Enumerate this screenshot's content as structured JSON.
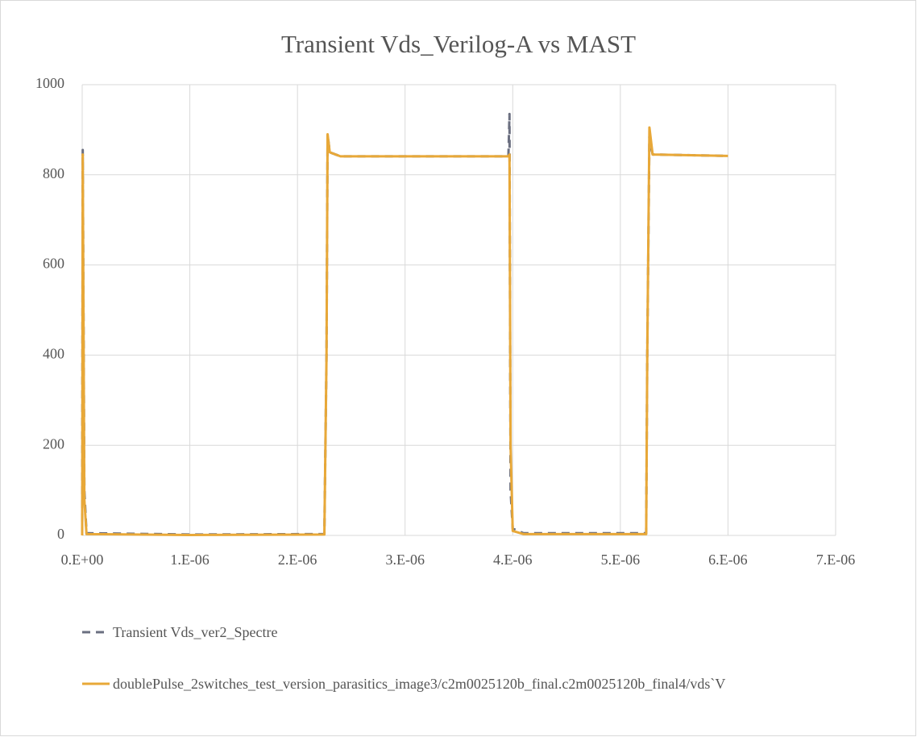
{
  "chart_data": {
    "type": "line",
    "title": "Transient Vds_Verilog-A vs MAST",
    "x": [
      0,
      5e-09,
      2e-08,
      4e-08,
      1e-06,
      2.25e-06,
      2.27e-06,
      2.28e-06,
      2.3e-06,
      2.4e-06,
      3.96e-06,
      3.97e-06,
      3.98e-06,
      4e-06,
      4.1e-06,
      5.24e-06,
      5.25e-06,
      5.27e-06,
      5.3e-06,
      6e-06
    ],
    "series": [
      {
        "name": "Transient Vds_ver2_Spectre",
        "color": "#6b6f80",
        "dashed": true,
        "values": [
          0,
          855,
          100,
          5,
          2,
          3,
          400,
          890,
          850,
          841,
          841,
          935,
          100,
          15,
          5,
          5,
          400,
          885,
          845,
          842
        ]
      },
      {
        "name": "doublePulse_2switches_test_version_parasitics_image3/c2m0025120b_final.c2m0025120b_final4/vds`V",
        "color": "#e8a838",
        "dashed": false,
        "values": [
          0,
          845,
          80,
          3,
          1,
          2,
          400,
          890,
          850,
          841,
          841,
          845,
          200,
          10,
          3,
          3,
          400,
          905,
          845,
          842
        ]
      }
    ],
    "xlim": [
      0,
      7e-06
    ],
    "xticks": [
      {
        "value": 0,
        "label": "0.E+00"
      },
      {
        "value": 1e-06,
        "label": "1.E-06"
      },
      {
        "value": 2e-06,
        "label": "2.E-06"
      },
      {
        "value": 3e-06,
        "label": "3.E-06"
      },
      {
        "value": 4e-06,
        "label": "4.E-06"
      },
      {
        "value": 5e-06,
        "label": "5.E-06"
      },
      {
        "value": 6e-06,
        "label": "6.E-06"
      },
      {
        "value": 7e-06,
        "label": "7.E-06"
      }
    ],
    "ylim": [
      0,
      1000
    ],
    "yticks": [
      0,
      200,
      400,
      600,
      800,
      1000
    ],
    "grid": true,
    "legend": "bottom"
  }
}
